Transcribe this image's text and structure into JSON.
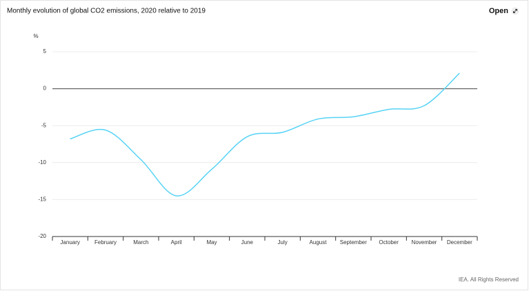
{
  "chart_data": {
    "type": "line",
    "title": "Monthly evolution of global CO2 emissions, 2020 relative to 2019",
    "y_label": "%",
    "categories": [
      "January",
      "February",
      "March",
      "April",
      "May",
      "June",
      "July",
      "August",
      "September",
      "October",
      "November",
      "December"
    ],
    "values": [
      -6.8,
      -5.6,
      -9.6,
      -14.5,
      -10.9,
      -6.5,
      -5.9,
      -4.1,
      -3.8,
      -2.8,
      -2.3,
      2.1
    ],
    "color": "#56d3f5",
    "ylim": [
      -20,
      5
    ],
    "yticks": [
      5,
      0,
      -5,
      -10,
      -15,
      -20
    ],
    "grid": true
  },
  "open_button": "Open",
  "footer": "IEA. All Rights Reserved"
}
